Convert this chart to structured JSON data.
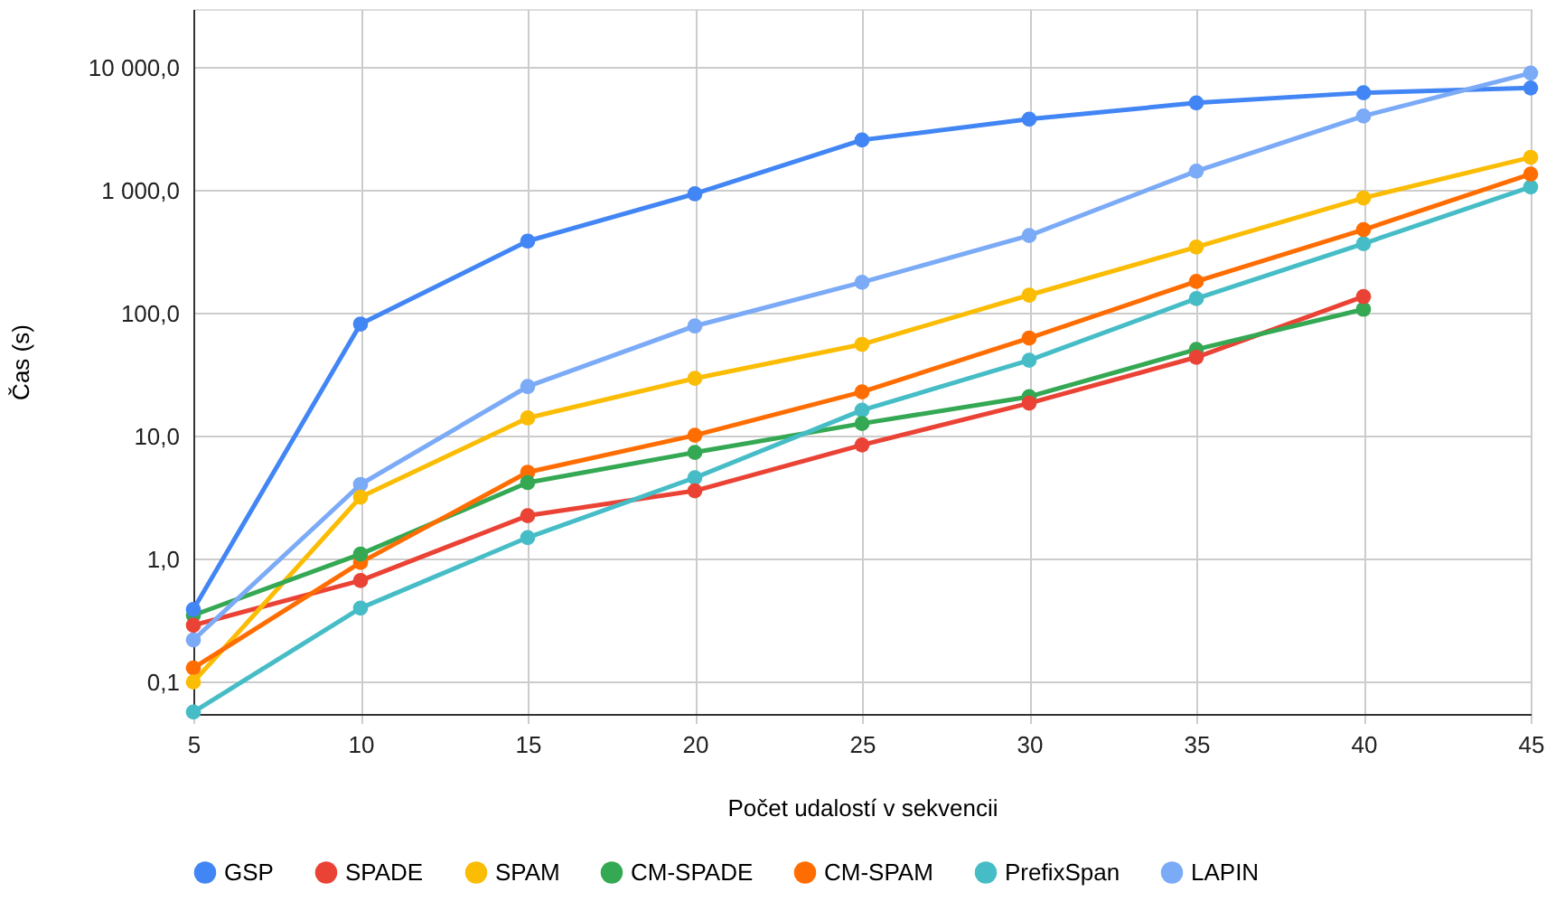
{
  "chart_data": {
    "type": "line",
    "xlabel": "Počet udalostí v sekvencii",
    "ylabel": "Čas (s)",
    "log": "y",
    "grid": true,
    "legend": "bottom",
    "marker": "circle",
    "line_style": "solid",
    "x": [
      5,
      10,
      15,
      20,
      25,
      30,
      35,
      40,
      45
    ],
    "xlim": [
      5,
      45
    ],
    "xticks": [
      5,
      10,
      15,
      20,
      25,
      30,
      35,
      40,
      45
    ],
    "ylim": [
      0.055,
      30000
    ],
    "yticks": [
      {
        "value": 0.1,
        "label": "0,1"
      },
      {
        "value": 1,
        "label": "1,0"
      },
      {
        "value": 10,
        "label": "10,0"
      },
      {
        "value": 100,
        "label": "100,0"
      },
      {
        "value": 1000,
        "label": "1 000,0"
      },
      {
        "value": 10000,
        "label": "10 000,0"
      }
    ],
    "series": [
      {
        "name": "GSP",
        "color": "#4285f4",
        "values": [
          0.39,
          82,
          388,
          940,
          2580,
          3810,
          5170,
          6250,
          6840
        ]
      },
      {
        "name": "SPADE",
        "color": "#ea4335",
        "values": [
          0.29,
          0.67,
          2.26,
          3.6,
          8.5,
          18.6,
          44,
          137,
          null
        ]
      },
      {
        "name": "SPAM",
        "color": "#fbbc04",
        "values": [
          0.1,
          3.2,
          14.1,
          29.6,
          56,
          141,
          347,
          870,
          1860
        ]
      },
      {
        "name": "CM-SPADE",
        "color": "#34a853",
        "values": [
          0.35,
          1.1,
          4.2,
          7.4,
          12.7,
          21,
          51,
          108,
          null
        ]
      },
      {
        "name": "CM-SPAM",
        "color": "#ff6d01",
        "values": [
          0.13,
          0.94,
          5.1,
          10.2,
          23,
          63,
          182,
          480,
          1360
        ]
      },
      {
        "name": "PrefixSpan",
        "color": "#46bdc6",
        "values": [
          0.057,
          0.4,
          1.5,
          4.6,
          16.3,
          41.6,
          132,
          370,
          1070
        ]
      },
      {
        "name": "LAPIN",
        "color": "#7baaf7",
        "values": [
          0.22,
          4.06,
          25.4,
          79,
          179,
          430,
          1440,
          4040,
          9040
        ]
      }
    ]
  }
}
